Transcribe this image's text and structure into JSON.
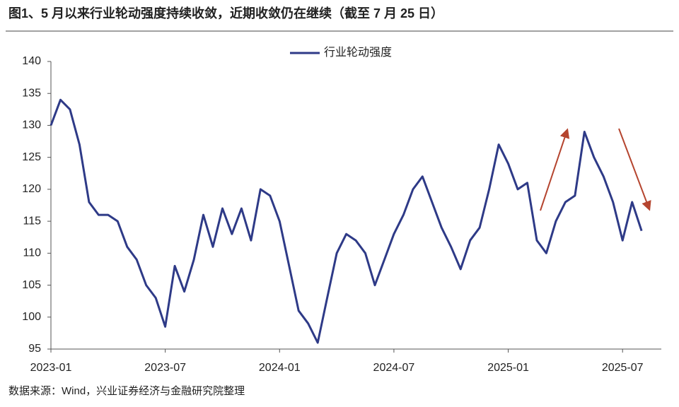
{
  "chart_data": {
    "type": "line",
    "title": "图1、5 月以来行业轮动强度持续收敛，近期收敛仍在继续（截至 7 月 25 日）",
    "source": "数据来源：Wind，兴业证券经济与金融研究院整理",
    "categories": [
      "2023-01",
      null,
      null,
      null,
      null,
      null,
      null,
      null,
      null,
      null,
      null,
      null,
      "2023-07",
      null,
      null,
      null,
      null,
      null,
      null,
      null,
      null,
      null,
      null,
      null,
      "2024-01",
      null,
      null,
      null,
      null,
      null,
      null,
      null,
      null,
      null,
      null,
      null,
      "2024-07",
      null,
      null,
      null,
      null,
      null,
      null,
      null,
      null,
      null,
      null,
      null,
      "2025-01",
      null,
      null,
      null,
      null,
      null,
      null,
      null,
      null,
      null,
      null,
      null,
      "2025-07",
      null,
      null
    ],
    "series": [
      {
        "name": "行业轮动强度",
        "color": "#2e3a87",
        "values": [
          130,
          134,
          132.5,
          127,
          118,
          116,
          116,
          115,
          111,
          109,
          105,
          103,
          98.5,
          108,
          104,
          109,
          116,
          111,
          117,
          113,
          117,
          112,
          120,
          119,
          115,
          108,
          101,
          99,
          96,
          103,
          110,
          113,
          112,
          110,
          105,
          109,
          113,
          116,
          120,
          122,
          118,
          114,
          111,
          107.5,
          112,
          114,
          120,
          127,
          124,
          120,
          121,
          112,
          110,
          115,
          118,
          119,
          129,
          125,
          122,
          118,
          112,
          118,
          113.5
        ]
      }
    ],
    "ylim": [
      95,
      140
    ],
    "yticks": [
      95,
      100,
      105,
      110,
      115,
      120,
      125,
      130,
      135,
      140
    ]
  }
}
